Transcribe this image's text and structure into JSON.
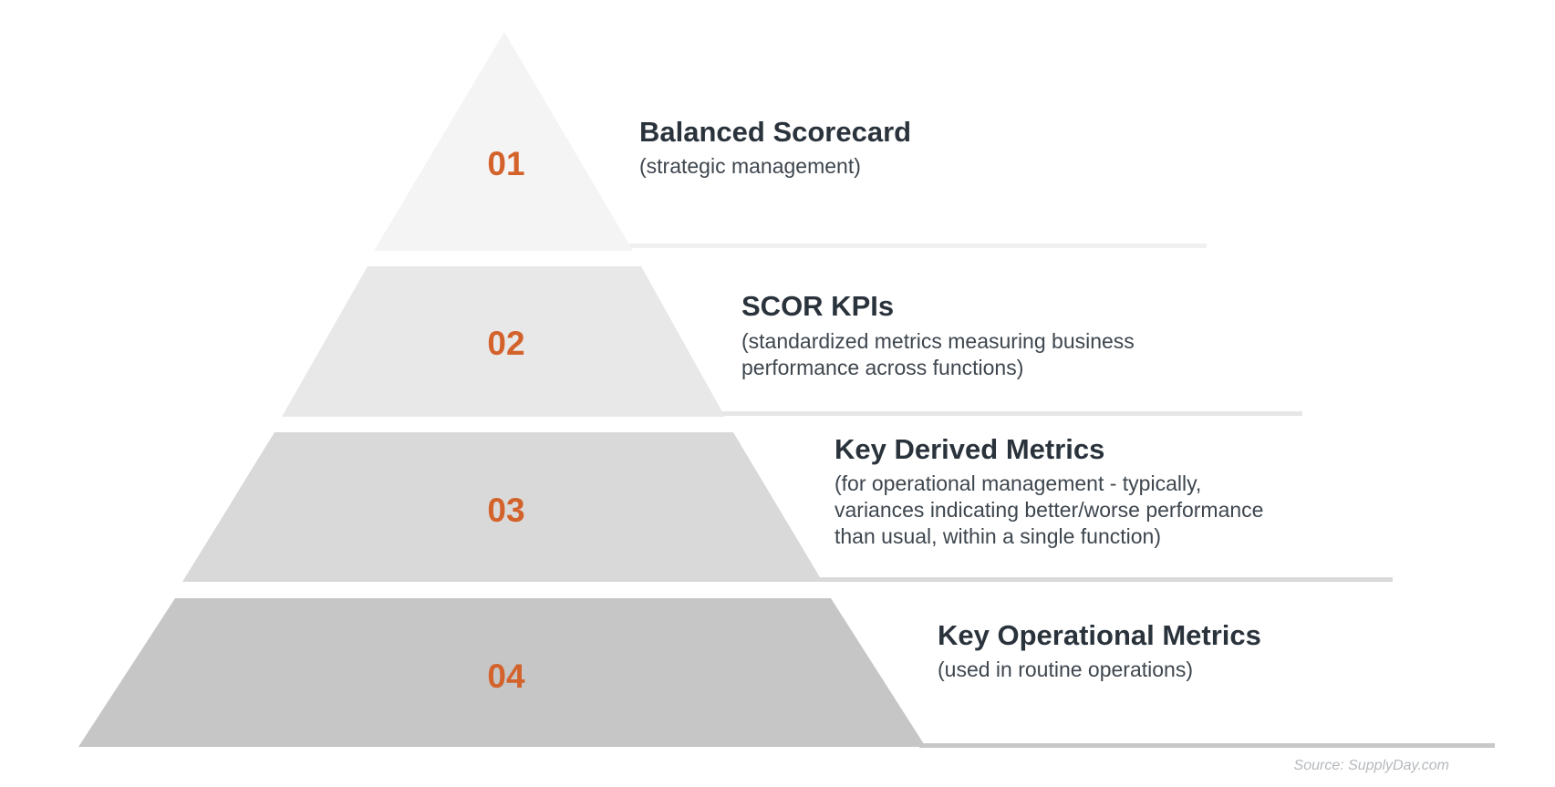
{
  "levels": [
    {
      "number": "01",
      "title": "Balanced Scorecard",
      "description": [
        "(strategic management)"
      ],
      "fill": "#f4f4f4",
      "line": "#f0f0f0"
    },
    {
      "number": "02",
      "title": "SCOR KPIs",
      "description": [
        "(standardized metrics measuring business",
        "performance across functions)"
      ],
      "fill": "#e8e8e8",
      "line": "#e6e6e6"
    },
    {
      "number": "03",
      "title": "Key Derived Metrics",
      "description": [
        "(for operational management - typically,",
        "variances indicating better/worse performance",
        "than usual, within a single function)"
      ],
      "fill": "#d9d9d9",
      "line": "#d9d9d9"
    },
    {
      "number": "04",
      "title": "Key Operational Metrics",
      "description": [
        "(used in routine operations)"
      ],
      "fill": "#c6c6c6",
      "line": "#c8c8c8"
    }
  ],
  "source": "Source: SupplyDay.com",
  "colors": {
    "accent": "#d4622b",
    "title_text": "#2a333c",
    "description_text": "#3e464e",
    "source_text": "#b5b9bc",
    "background": "#ffffff"
  }
}
